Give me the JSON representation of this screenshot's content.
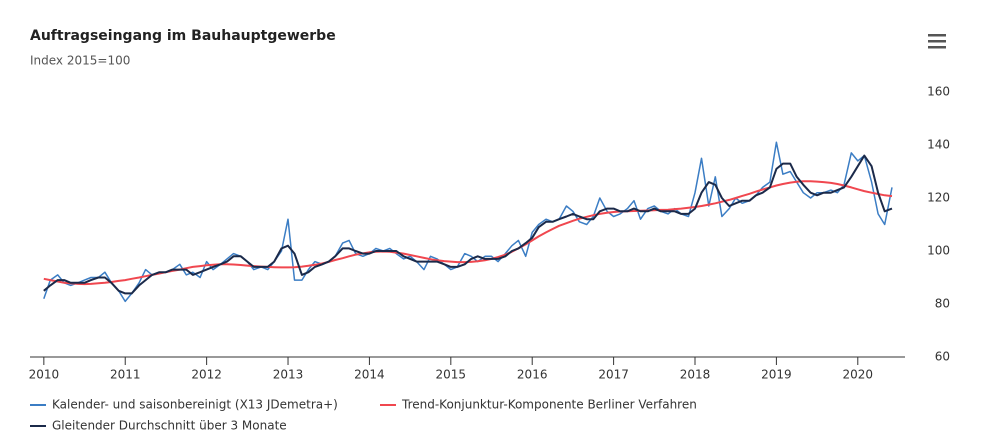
{
  "chart_data": {
    "type": "line",
    "title": "Auftragseingang im Bauhauptgewerbe",
    "subtitle": "Index 2015=100",
    "x": [
      2010,
      2010.08,
      2010.17,
      2010.25,
      2010.33,
      2010.42,
      2010.5,
      2010.58,
      2010.67,
      2010.75,
      2010.83,
      2010.92,
      2011,
      2011.08,
      2011.17,
      2011.25,
      2011.33,
      2011.42,
      2011.5,
      2011.58,
      2011.67,
      2011.75,
      2011.83,
      2011.92,
      2012,
      2012.08,
      2012.17,
      2012.25,
      2012.33,
      2012.42,
      2012.5,
      2012.58,
      2012.67,
      2012.75,
      2012.83,
      2012.92,
      2013,
      2013.08,
      2013.17,
      2013.25,
      2013.33,
      2013.42,
      2013.5,
      2013.58,
      2013.67,
      2013.75,
      2013.83,
      2013.92,
      2014,
      2014.08,
      2014.17,
      2014.25,
      2014.33,
      2014.42,
      2014.5,
      2014.58,
      2014.67,
      2014.75,
      2014.83,
      2014.92,
      2015,
      2015.08,
      2015.17,
      2015.25,
      2015.33,
      2015.42,
      2015.5,
      2015.58,
      2015.67,
      2015.75,
      2015.83,
      2015.92,
      2016,
      2016.08,
      2016.17,
      2016.25,
      2016.33,
      2016.42,
      2016.5,
      2016.58,
      2016.67,
      2016.75,
      2016.83,
      2016.92,
      2017,
      2017.08,
      2017.17,
      2017.25,
      2017.33,
      2017.42,
      2017.5,
      2017.58,
      2017.67,
      2017.75,
      2017.83,
      2017.92,
      2018,
      2018.08,
      2018.17,
      2018.25,
      2018.33,
      2018.42,
      2018.5,
      2018.58,
      2018.67,
      2018.75,
      2018.83,
      2018.92,
      2019,
      2019.08,
      2019.17,
      2019.25,
      2019.33,
      2019.42,
      2019.5,
      2019.58,
      2019.67,
      2019.75,
      2019.83,
      2019.92,
      2020,
      2020.08,
      2020.17,
      2020.25,
      2020.33,
      2020.42
    ],
    "series": [
      {
        "name": "Kalender- und saisonbereinigt (X13 JDemetra+)",
        "color": "#3b7dc4",
        "width": 1.5,
        "values": [
          82,
          89,
          91,
          88,
          87,
          88,
          89,
          90,
          90,
          92,
          88,
          85,
          81,
          84,
          88,
          93,
          91,
          92,
          92,
          93,
          95,
          91,
          92,
          90,
          96,
          93,
          95,
          97,
          99,
          98,
          96,
          93,
          94,
          93,
          96,
          100,
          112,
          89,
          89,
          93,
          96,
          95,
          96,
          98,
          103,
          104,
          99,
          98,
          99,
          101,
          100,
          101,
          99,
          97,
          98,
          96,
          93,
          98,
          97,
          95,
          93,
          94,
          99,
          98,
          96,
          98,
          98,
          96,
          99,
          102,
          104,
          98,
          107,
          110,
          112,
          111,
          112,
          117,
          115,
          111,
          110,
          113,
          120,
          115,
          113,
          114,
          116,
          119,
          112,
          116,
          117,
          115,
          114,
          116,
          114,
          113,
          122,
          135,
          117,
          128,
          113,
          116,
          120,
          118,
          119,
          121,
          124,
          126,
          141,
          129,
          130,
          126,
          122,
          120,
          122,
          122,
          123,
          122,
          125,
          137,
          134,
          136,
          126,
          114,
          110,
          124
        ]
      },
      {
        "name": "Trend-Konjunktur-Komponente Berliner Verfahren",
        "color": "#f0474f",
        "width": 2,
        "values": [
          89.5,
          89,
          88.5,
          88,
          87.8,
          87.6,
          87.5,
          87.6,
          87.8,
          88,
          88.3,
          88.7,
          89,
          89.5,
          90,
          90.5,
          91,
          91.5,
          92,
          92.5,
          93,
          93.5,
          94,
          94.3,
          94.6,
          94.8,
          95,
          95,
          94.9,
          94.7,
          94.5,
          94.3,
          94.1,
          94,
          93.9,
          93.8,
          93.8,
          93.9,
          94.1,
          94.4,
          94.8,
          95.3,
          95.9,
          96.6,
          97.3,
          98,
          98.6,
          99.1,
          99.5,
          99.7,
          99.8,
          99.7,
          99.4,
          99,
          98.5,
          98,
          97.4,
          96.9,
          96.5,
          96.2,
          96,
          95.8,
          95.8,
          95.9,
          96.1,
          96.5,
          97,
          97.7,
          98.6,
          99.7,
          101,
          102.5,
          104,
          105.5,
          107,
          108.3,
          109.5,
          110.5,
          111.4,
          112.2,
          112.9,
          113.5,
          114,
          114.4,
          114.7,
          114.9,
          115,
          115.1,
          115.2,
          115.3,
          115.4,
          115.5,
          115.6,
          115.8,
          116,
          116.3,
          116.6,
          117,
          117.5,
          118,
          118.6,
          119.3,
          120,
          120.8,
          121.6,
          122.4,
          123.2,
          124,
          124.7,
          125.3,
          125.8,
          126.1,
          126.3,
          126.3,
          126.2,
          126,
          125.7,
          125.3,
          124.7,
          124,
          123.3,
          122.6,
          122,
          121.5,
          121,
          120.7
        ]
      },
      {
        "name": "Gleitender Durchschnitt über 3 Monate",
        "color": "#1b2a4a",
        "width": 2,
        "values": [
          85,
          87,
          89,
          89,
          88,
          88,
          88,
          89,
          90,
          90,
          88,
          85,
          84,
          84,
          87,
          89,
          91,
          92,
          92,
          93,
          93,
          93,
          91,
          92,
          93,
          94,
          95,
          96,
          98,
          98,
          96,
          94,
          94,
          94,
          96,
          101,
          102,
          99,
          91,
          92,
          94,
          95,
          96,
          98,
          101,
          101,
          100,
          99,
          99,
          100,
          100,
          100,
          100,
          98,
          97,
          96,
          96,
          96,
          96,
          95,
          94,
          94,
          95,
          97,
          98,
          97,
          97,
          97,
          98,
          100,
          101,
          103,
          105,
          109,
          111,
          111,
          112,
          113,
          114,
          113,
          112,
          112,
          115,
          116,
          116,
          115,
          115,
          116,
          115,
          115,
          116,
          115,
          115,
          115,
          114,
          114,
          116,
          122,
          126,
          125,
          120,
          117,
          118,
          119,
          119,
          121,
          122,
          124,
          131,
          133,
          133,
          128,
          125,
          122,
          121,
          122,
          122,
          123,
          124,
          128,
          132,
          136,
          132,
          122,
          115,
          116
        ]
      }
    ],
    "xlim": [
      2009.83,
      2020.58
    ],
    "xticks": [
      2010,
      2011,
      2012,
      2013,
      2014,
      2015,
      2016,
      2017,
      2018,
      2019,
      2020
    ],
    "ylim": [
      60,
      160
    ],
    "yticks": [
      60,
      80,
      100,
      120,
      140,
      160
    ],
    "y_axis_side": "right"
  }
}
